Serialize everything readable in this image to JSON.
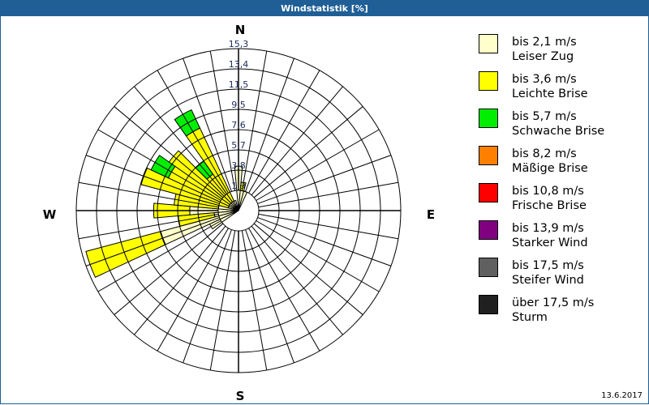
{
  "window": {
    "title": "Windstatistik [%]",
    "date": "13.6.2017"
  },
  "compass": {
    "N": "N",
    "E": "E",
    "S": "S",
    "W": "W"
  },
  "chart_data": {
    "type": "windrose",
    "title": "Windstatistik [%]",
    "radial_unit": "%",
    "radial_ticks": [
      "1,9",
      "3,8",
      "5,7",
      "7,6",
      "9,5",
      "11,5",
      "13,4",
      "15,3"
    ],
    "radial_range": [
      0,
      15.3
    ],
    "sector_width_deg": 10,
    "directions_deg": [
      0,
      10,
      20,
      240,
      250,
      260,
      270,
      280,
      290,
      300,
      310,
      320,
      330,
      340
    ],
    "series": [
      {
        "name": "bis 2,1 m/s Leiser Zug",
        "color": "#ffffcc",
        "values": [
          4.2,
          1.9,
          1.9,
          3.0,
          7.6,
          2.3,
          4.6,
          1.9,
          1.0,
          1.0,
          1.0,
          1.0,
          1.0,
          1.0
        ]
      },
      {
        "name": "bis 3,6 m/s Leichte Brise",
        "color": "#ffff00",
        "values": [
          0,
          0.8,
          0,
          0,
          7.3,
          3.4,
          3.4,
          4.2,
          8.5,
          6.3,
          7.0,
          3.2,
          7.6,
          0
        ]
      },
      {
        "name": "bis 5,7 m/s Schwache Brise",
        "color": "#00ee00",
        "values": [
          0,
          0,
          0,
          0,
          0,
          0,
          0,
          0,
          0,
          1.8,
          0,
          1.5,
          1.9,
          0
        ]
      },
      {
        "name": "bis 8,2 m/s Mäßige Brise",
        "color": "#ff8000",
        "values": [
          0,
          0,
          0,
          0,
          0,
          0,
          0,
          0,
          0,
          0,
          0,
          0,
          0,
          0
        ]
      },
      {
        "name": "bis 10,8 m/s Frische Brise",
        "color": "#ff0000",
        "values": [
          0,
          0,
          0,
          0,
          0,
          0,
          0,
          0,
          0,
          0,
          0,
          0,
          0,
          0
        ]
      },
      {
        "name": "bis 13,9 m/s Starker Wind",
        "color": "#800080",
        "values": [
          0,
          0,
          0,
          0,
          0,
          0,
          0,
          0,
          0,
          0,
          0,
          0,
          0,
          0
        ]
      },
      {
        "name": "bis 17,5 m/s Steifer Wind",
        "color": "#606060",
        "values": [
          0,
          0,
          0,
          0,
          0,
          0,
          0,
          0,
          0,
          0,
          0,
          0,
          0,
          0
        ]
      },
      {
        "name": "über 17,5 m/s Sturm",
        "color": "#202020",
        "values": [
          0,
          0,
          0,
          0,
          0,
          0,
          0,
          0,
          0,
          0,
          0,
          0,
          0,
          0
        ]
      }
    ],
    "grid": true,
    "legend_position": "right"
  },
  "legend": [
    {
      "line1": "bis 2,1 m/s",
      "line2": "Leiser Zug",
      "color": "#ffffcc"
    },
    {
      "line1": "bis 3,6 m/s",
      "line2": "Leichte Brise",
      "color": "#ffff00"
    },
    {
      "line1": "bis 5,7 m/s",
      "line2": "Schwache Brise",
      "color": "#00ee00"
    },
    {
      "line1": "bis 8,2 m/s",
      "line2": "Mäßige Brise",
      "color": "#ff8000"
    },
    {
      "line1": "bis 10,8 m/s",
      "line2": "Frische Brise",
      "color": "#ff0000"
    },
    {
      "line1": "bis 13,9 m/s",
      "line2": "Starker Wind",
      "color": "#800080"
    },
    {
      "line1": "bis 17,5 m/s",
      "line2": "Steifer Wind",
      "color": "#606060"
    },
    {
      "line1": "über 17,5 m/s",
      "line2": "Sturm",
      "color": "#202020"
    }
  ]
}
